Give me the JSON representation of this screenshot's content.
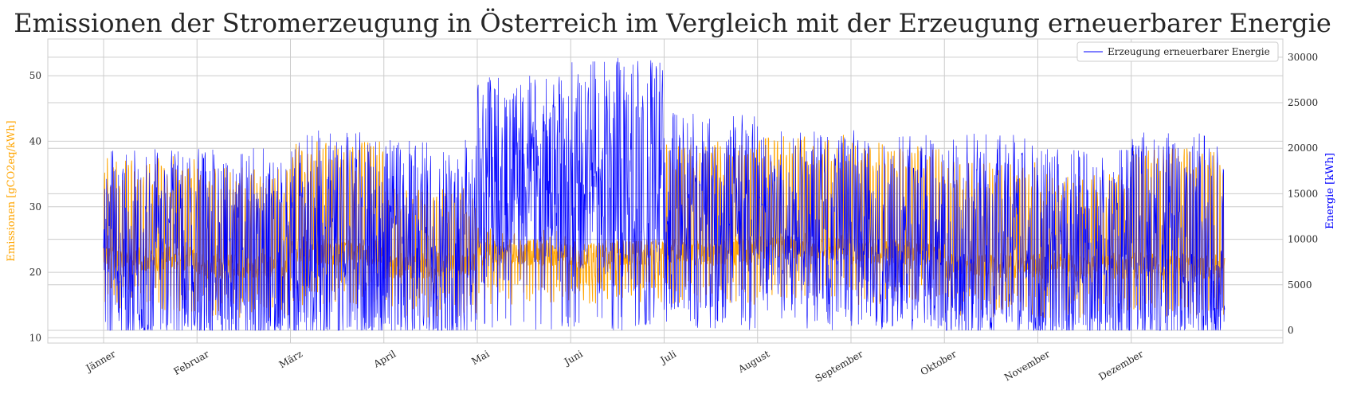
{
  "chart_data": {
    "type": "line",
    "title": "Emissionen der Stromerzeugung in Österreich im Vergleich mit der Erzeugung erneuerbarer Energie",
    "x_tick_labels": [
      "Jänner",
      "Februar",
      "März",
      "April",
      "Mai",
      "Juni",
      "Juli",
      "August",
      "September",
      "Oktober",
      "November",
      "Dezember"
    ],
    "y_left": {
      "label": "Emissionen [gCO2eq/kWh]",
      "ticks": [
        10,
        20,
        30,
        40,
        50
      ],
      "range": [
        9.2,
        55.6
      ],
      "color": "#ffa500"
    },
    "y_right": {
      "label": "Energie [kWh]",
      "ticks": [
        0,
        5000,
        10000,
        15000,
        20000,
        25000,
        30000
      ],
      "range": [
        -1400,
        32000
      ],
      "color": "#0000ff"
    },
    "legend": {
      "position": "top-right",
      "entries": [
        "Erzeugung erneuerbarer Energie"
      ]
    },
    "grid": true,
    "series": [
      {
        "axis": "left",
        "color": "#ffa500",
        "monthly_daily_peak": [
          38,
          36,
          40,
          33,
          27,
          23,
          40,
          41,
          40,
          37,
          35,
          39
        ],
        "monthly_baseline": [
          22,
          21,
          23,
          21,
          23,
          23,
          23,
          24,
          23,
          21,
          21,
          21
        ]
      },
      {
        "name": "Erzeugung erneuerbarer Energie",
        "axis": "right",
        "color": "#0000ff",
        "monthly_mean": [
          9000,
          8500,
          10000,
          9500,
          16000,
          17000,
          13000,
          12000,
          11000,
          10000,
          8000,
          9500
        ],
        "monthly_max": [
          20000,
          20000,
          22000,
          21000,
          28000,
          30000,
          24000,
          22000,
          22000,
          22000,
          20000,
          22000
        ]
      }
    ]
  }
}
